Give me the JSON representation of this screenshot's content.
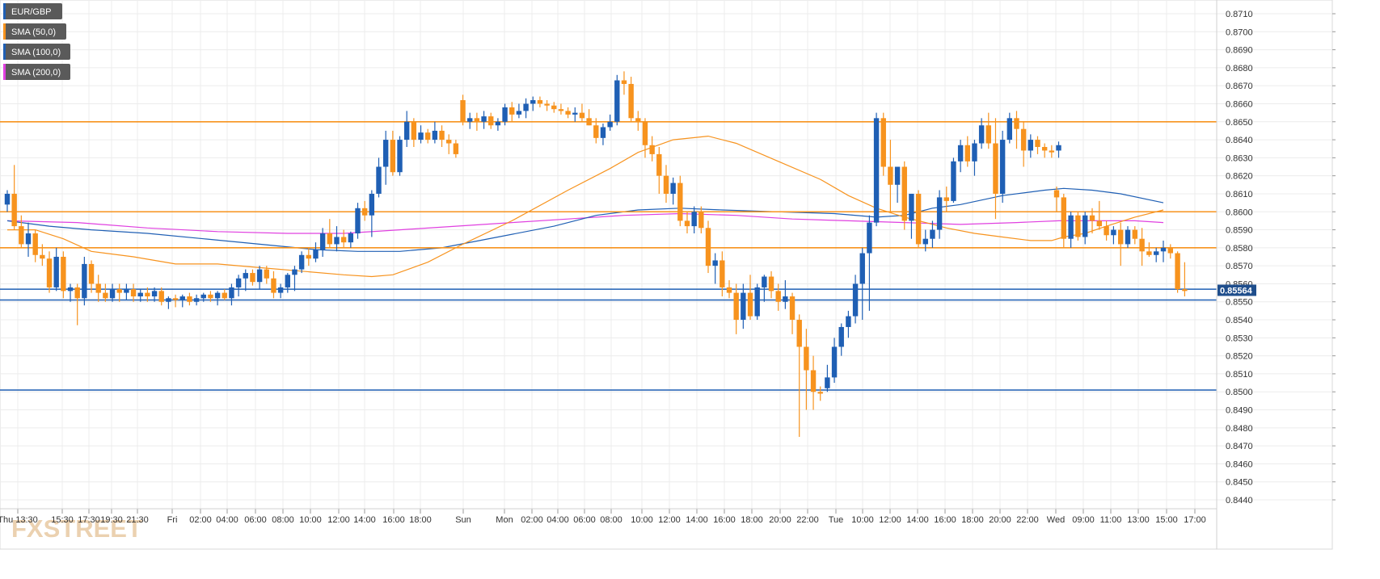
{
  "chart_data": {
    "type": "candlestick",
    "symbol": "EUR/GBP",
    "legend": [
      {
        "label": "EUR/GBP",
        "color": "#1f5fb4"
      },
      {
        "label": "SMA (50,0)",
        "color": "#f7931e"
      },
      {
        "label": "SMA (100,0)",
        "color": "#1f5fb4"
      },
      {
        "label": "SMA (200,0)",
        "color": "#e040e0"
      }
    ],
    "legend_placement": "top-left",
    "ylim": [
      0.8436,
      0.8716
    ],
    "y_ticks": [
      "0.8710",
      "0.8700",
      "0.8690",
      "0.8680",
      "0.8670",
      "0.8660",
      "0.8650",
      "0.8640",
      "0.8630",
      "0.8620",
      "0.8610",
      "0.8600",
      "0.8590",
      "0.8580",
      "0.8570",
      "0.8560",
      "0.8550",
      "0.8540",
      "0.8530",
      "0.8520",
      "0.8510",
      "0.8500",
      "0.8490",
      "0.8480",
      "0.8470",
      "0.8460",
      "0.8450",
      "0.8440"
    ],
    "x_ticks": [
      "Thu 13:30",
      "15:30",
      "17:30",
      "19:30",
      "21:30",
      "Fri",
      "02:00",
      "04:00",
      "06:00",
      "08:00",
      "10:00",
      "12:00",
      "14:00",
      "16:00",
      "18:00",
      "Sun",
      "Mon",
      "02:00",
      "04:00",
      "06:00",
      "08:00",
      "10:00",
      "12:00",
      "14:00",
      "16:00",
      "18:00",
      "20:00",
      "22:00",
      "Tue",
      "10:00",
      "12:00",
      "14:00",
      "16:00",
      "18:00",
      "20:00",
      "22:00",
      "Wed",
      "09:00",
      "11:00",
      "13:00",
      "15:00",
      "17:00"
    ],
    "grid": true,
    "last_price": "0.85564",
    "last_price_value": 0.85564,
    "horizontal_lines": [
      {
        "value": 0.865,
        "color": "#f7931e"
      },
      {
        "value": 0.86,
        "color": "#f7931e"
      },
      {
        "value": 0.858,
        "color": "#f7931e"
      },
      {
        "value": 0.8557,
        "color": "#1f5fb4"
      },
      {
        "value": 0.8551,
        "color": "#1f5fb4"
      },
      {
        "value": 0.8501,
        "color": "#1f5fb4"
      }
    ],
    "up_color": "#1f5fb4",
    "down_color": "#f7931e",
    "candles_ohlc": [
      [
        0.8604,
        0.8612,
        0.86,
        0.861
      ],
      [
        0.861,
        0.8626,
        0.859,
        0.8592
      ],
      [
        0.8592,
        0.8598,
        0.858,
        0.8582
      ],
      [
        0.8582,
        0.8594,
        0.8575,
        0.8588
      ],
      [
        0.8588,
        0.859,
        0.8572,
        0.8576
      ],
      [
        0.8576,
        0.8582,
        0.857,
        0.8574
      ],
      [
        0.8574,
        0.8578,
        0.8555,
        0.8558
      ],
      [
        0.8558,
        0.858,
        0.8556,
        0.8575
      ],
      [
        0.8575,
        0.8578,
        0.8552,
        0.8556
      ],
      [
        0.8556,
        0.856,
        0.855,
        0.8558
      ],
      [
        0.8558,
        0.856,
        0.8537,
        0.8552
      ],
      [
        0.8552,
        0.8575,
        0.8548,
        0.8571
      ],
      [
        0.8571,
        0.8573,
        0.8555,
        0.856
      ],
      [
        0.856,
        0.8565,
        0.855,
        0.8555
      ],
      [
        0.8555,
        0.856,
        0.855,
        0.8552
      ],
      [
        0.8552,
        0.856,
        0.855,
        0.8557
      ],
      [
        0.8557,
        0.856,
        0.855,
        0.8555
      ],
      [
        0.8555,
        0.856,
        0.8551,
        0.8557
      ],
      [
        0.8557,
        0.856,
        0.855,
        0.8553
      ],
      [
        0.8553,
        0.8557,
        0.855,
        0.8555
      ],
      [
        0.8555,
        0.8558,
        0.855,
        0.8553
      ],
      [
        0.8553,
        0.8558,
        0.855,
        0.8556
      ],
      [
        0.8556,
        0.8558,
        0.8548,
        0.855
      ],
      [
        0.855,
        0.8553,
        0.8546,
        0.8552
      ],
      [
        0.8552,
        0.8554,
        0.8547,
        0.8551
      ],
      [
        0.8551,
        0.8554,
        0.8547,
        0.8553
      ],
      [
        0.8553,
        0.8555,
        0.8548,
        0.855
      ],
      [
        0.855,
        0.8554,
        0.8548,
        0.8552
      ],
      [
        0.8552,
        0.8555,
        0.855,
        0.8554
      ],
      [
        0.8554,
        0.8556,
        0.855,
        0.8552
      ],
      [
        0.8552,
        0.8556,
        0.8548,
        0.8555
      ],
      [
        0.8555,
        0.8557,
        0.8551,
        0.8552
      ],
      [
        0.8552,
        0.856,
        0.8548,
        0.8558
      ],
      [
        0.8558,
        0.8565,
        0.8553,
        0.8563
      ],
      [
        0.8563,
        0.8568,
        0.8556,
        0.8566
      ],
      [
        0.8566,
        0.8568,
        0.8559,
        0.8561
      ],
      [
        0.8561,
        0.857,
        0.8557,
        0.8568
      ],
      [
        0.8568,
        0.857,
        0.856,
        0.8563
      ],
      [
        0.8563,
        0.8567,
        0.8552,
        0.8555
      ],
      [
        0.8555,
        0.856,
        0.8552,
        0.8558
      ],
      [
        0.8558,
        0.8566,
        0.8555,
        0.8565
      ],
      [
        0.8565,
        0.857,
        0.8556,
        0.8568
      ],
      [
        0.8568,
        0.8578,
        0.8566,
        0.8576
      ],
      [
        0.8576,
        0.858,
        0.857,
        0.8574
      ],
      [
        0.8574,
        0.8583,
        0.8572,
        0.8579
      ],
      [
        0.8579,
        0.8591,
        0.8575,
        0.8588
      ],
      [
        0.8588,
        0.8596,
        0.858,
        0.8582
      ],
      [
        0.8582,
        0.8592,
        0.8578,
        0.8586
      ],
      [
        0.8586,
        0.859,
        0.858,
        0.8583
      ],
      [
        0.8583,
        0.8589,
        0.858,
        0.8588
      ],
      [
        0.8588,
        0.8605,
        0.8585,
        0.8602
      ],
      [
        0.8602,
        0.8606,
        0.8595,
        0.8598
      ],
      [
        0.8598,
        0.8612,
        0.8586,
        0.861
      ],
      [
        0.861,
        0.863,
        0.8608,
        0.8625
      ],
      [
        0.8625,
        0.8645,
        0.8615,
        0.864
      ],
      [
        0.864,
        0.8645,
        0.862,
        0.8622
      ],
      [
        0.8622,
        0.8642,
        0.862,
        0.864
      ],
      [
        0.864,
        0.8656,
        0.8636,
        0.865
      ],
      [
        0.865,
        0.8652,
        0.8636,
        0.864
      ],
      [
        0.864,
        0.8648,
        0.8638,
        0.8644
      ],
      [
        0.8644,
        0.8646,
        0.8638,
        0.864
      ],
      [
        0.864,
        0.865,
        0.8638,
        0.8645
      ],
      [
        0.8645,
        0.8648,
        0.8636,
        0.864
      ],
      [
        0.864,
        0.8643,
        0.8632,
        0.8638
      ],
      [
        0.8638,
        0.864,
        0.863,
        0.8632
      ],
      [
        0.8662,
        0.8665,
        0.8648,
        0.865
      ],
      [
        0.865,
        0.8655,
        0.8646,
        0.8652
      ],
      [
        0.8652,
        0.8655,
        0.8645,
        0.865
      ],
      [
        0.865,
        0.8656,
        0.8646,
        0.8653
      ],
      [
        0.8653,
        0.8655,
        0.8646,
        0.8648
      ],
      [
        0.8648,
        0.8652,
        0.8645,
        0.865
      ],
      [
        0.865,
        0.866,
        0.8648,
        0.8658
      ],
      [
        0.8658,
        0.8661,
        0.865,
        0.8654
      ],
      [
        0.8654,
        0.866,
        0.8652,
        0.8656
      ],
      [
        0.8656,
        0.8663,
        0.8652,
        0.866
      ],
      [
        0.866,
        0.8664,
        0.8656,
        0.8662
      ],
      [
        0.8662,
        0.8664,
        0.8658,
        0.866
      ],
      [
        0.866,
        0.8662,
        0.8656,
        0.8659
      ],
      [
        0.8659,
        0.8661,
        0.8655,
        0.8657
      ],
      [
        0.8657,
        0.866,
        0.8654,
        0.8656
      ],
      [
        0.8656,
        0.8658,
        0.8652,
        0.8654
      ],
      [
        0.8654,
        0.8658,
        0.865,
        0.8655
      ],
      [
        0.8655,
        0.866,
        0.865,
        0.8652
      ],
      [
        0.8652,
        0.8657,
        0.8648,
        0.8648
      ],
      [
        0.8648,
        0.8652,
        0.8638,
        0.8641
      ],
      [
        0.8641,
        0.8649,
        0.8637,
        0.8647
      ],
      [
        0.8647,
        0.8654,
        0.8645,
        0.865
      ],
      [
        0.865,
        0.8676,
        0.8648,
        0.8673
      ],
      [
        0.8673,
        0.8678,
        0.8665,
        0.8671
      ],
      [
        0.8671,
        0.8675,
        0.865,
        0.8652
      ],
      [
        0.8652,
        0.8656,
        0.8645,
        0.865
      ],
      [
        0.865,
        0.8652,
        0.863,
        0.8637
      ],
      [
        0.8637,
        0.8642,
        0.8628,
        0.8632
      ],
      [
        0.8632,
        0.8636,
        0.861,
        0.862
      ],
      [
        0.862,
        0.8626,
        0.8605,
        0.861
      ],
      [
        0.861,
        0.8619,
        0.8604,
        0.8616
      ],
      [
        0.8616,
        0.862,
        0.8592,
        0.8595
      ],
      [
        0.8595,
        0.86,
        0.8588,
        0.8592
      ],
      [
        0.8592,
        0.8603,
        0.8588,
        0.86
      ],
      [
        0.86,
        0.8603,
        0.8588,
        0.8591
      ],
      [
        0.8591,
        0.8595,
        0.8566,
        0.857
      ],
      [
        0.857,
        0.8577,
        0.856,
        0.8573
      ],
      [
        0.8573,
        0.8578,
        0.8553,
        0.8558
      ],
      [
        0.8558,
        0.8562,
        0.8552,
        0.8555
      ],
      [
        0.8555,
        0.856,
        0.8532,
        0.854
      ],
      [
        0.854,
        0.856,
        0.8535,
        0.8555
      ],
      [
        0.8555,
        0.8565,
        0.854,
        0.8542
      ],
      [
        0.8542,
        0.856,
        0.854,
        0.8558
      ],
      [
        0.8558,
        0.8565,
        0.855,
        0.8564
      ],
      [
        0.8564,
        0.8567,
        0.8552,
        0.8556
      ],
      [
        0.8556,
        0.856,
        0.8545,
        0.855
      ],
      [
        0.855,
        0.8562,
        0.8546,
        0.8553
      ],
      [
        0.8553,
        0.8555,
        0.8532,
        0.854
      ],
      [
        0.854,
        0.8543,
        0.8475,
        0.8525
      ],
      [
        0.8525,
        0.8535,
        0.849,
        0.8512
      ],
      [
        0.8512,
        0.852,
        0.849,
        0.85
      ],
      [
        0.85,
        0.8503,
        0.8495,
        0.8499
      ],
      [
        0.8502,
        0.8515,
        0.85,
        0.8508
      ],
      [
        0.8508,
        0.853,
        0.8505,
        0.8525
      ],
      [
        0.8525,
        0.8538,
        0.852,
        0.8536
      ],
      [
        0.8536,
        0.8545,
        0.853,
        0.8542
      ],
      [
        0.8542,
        0.8565,
        0.8538,
        0.856
      ],
      [
        0.856,
        0.858,
        0.854,
        0.8577
      ],
      [
        0.8577,
        0.8598,
        0.8545,
        0.8594
      ],
      [
        0.8594,
        0.8655,
        0.8592,
        0.8652
      ],
      [
        0.8652,
        0.8655,
        0.862,
        0.8625
      ],
      [
        0.8625,
        0.864,
        0.86,
        0.8615
      ],
      [
        0.8615,
        0.8625,
        0.8605,
        0.8625
      ],
      [
        0.8625,
        0.8628,
        0.859,
        0.8595
      ],
      [
        0.8595,
        0.861,
        0.8585,
        0.861
      ],
      [
        0.861,
        0.8612,
        0.858,
        0.8582
      ],
      [
        0.8582,
        0.859,
        0.8578,
        0.8585
      ],
      [
        0.8585,
        0.8595,
        0.858,
        0.859
      ],
      [
        0.859,
        0.8612,
        0.8585,
        0.8608
      ],
      [
        0.8608,
        0.8614,
        0.86,
        0.8606
      ],
      [
        0.8606,
        0.863,
        0.8605,
        0.8628
      ],
      [
        0.8628,
        0.864,
        0.8622,
        0.8637
      ],
      [
        0.8637,
        0.8642,
        0.8625,
        0.8628
      ],
      [
        0.8628,
        0.864,
        0.862,
        0.8638
      ],
      [
        0.8638,
        0.8652,
        0.8635,
        0.8648
      ],
      [
        0.8648,
        0.8655,
        0.8635,
        0.8638
      ],
      [
        0.8638,
        0.8652,
        0.8596,
        0.861
      ],
      [
        0.861,
        0.8645,
        0.8605,
        0.864
      ],
      [
        0.864,
        0.8655,
        0.8638,
        0.8652
      ],
      [
        0.8652,
        0.8656,
        0.8635,
        0.8646
      ],
      [
        0.8646,
        0.865,
        0.8625,
        0.8634
      ],
      [
        0.8634,
        0.8643,
        0.863,
        0.864
      ],
      [
        0.864,
        0.8642,
        0.8632,
        0.8636
      ],
      [
        0.8636,
        0.8638,
        0.863,
        0.8634
      ],
      [
        0.8634,
        0.8637,
        0.863,
        0.8633
      ],
      [
        0.8634,
        0.8639,
        0.863,
        0.8637
      ],
      [
        0.8612,
        0.8614,
        0.86,
        0.8608
      ],
      [
        0.8608,
        0.861,
        0.858,
        0.8585
      ],
      [
        0.8585,
        0.86,
        0.858,
        0.8598
      ],
      [
        0.8598,
        0.86,
        0.8584,
        0.8586
      ],
      [
        0.8586,
        0.86,
        0.8582,
        0.8598
      ],
      [
        0.8598,
        0.8602,
        0.8588,
        0.8595
      ],
      [
        0.8595,
        0.8606,
        0.859,
        0.8592
      ],
      [
        0.8592,
        0.8595,
        0.8584,
        0.8587
      ],
      [
        0.8587,
        0.8592,
        0.8582,
        0.859
      ],
      [
        0.859,
        0.8594,
        0.857,
        0.8582
      ],
      [
        0.8582,
        0.8592,
        0.858,
        0.859
      ],
      [
        0.859,
        0.8592,
        0.8582,
        0.8585
      ],
      [
        0.8585,
        0.8591,
        0.857,
        0.8578
      ],
      [
        0.8578,
        0.8583,
        0.8575,
        0.8576
      ],
      [
        0.8576,
        0.858,
        0.8572,
        0.8578
      ],
      [
        0.8578,
        0.8584,
        0.8572,
        0.858
      ],
      [
        0.858,
        0.8582,
        0.8574,
        0.8577
      ],
      [
        0.8577,
        0.8578,
        0.8555,
        0.8557
      ],
      [
        0.8557,
        0.8572,
        0.8553,
        0.8556
      ]
    ],
    "sma_50": [
      [
        0,
        0.859
      ],
      [
        4,
        0.859
      ],
      [
        8,
        0.8585
      ],
      [
        12,
        0.8578
      ],
      [
        18,
        0.8575
      ],
      [
        24,
        0.8571
      ],
      [
        30,
        0.8571
      ],
      [
        36,
        0.8569
      ],
      [
        42,
        0.8567
      ],
      [
        48,
        0.8565
      ],
      [
        52,
        0.8564
      ],
      [
        55,
        0.8565
      ],
      [
        60,
        0.8572
      ],
      [
        65,
        0.8582
      ],
      [
        72,
        0.8595
      ],
      [
        80,
        0.8612
      ],
      [
        86,
        0.8624
      ],
      [
        90,
        0.8633
      ],
      [
        95,
        0.864
      ],
      [
        100,
        0.8642
      ],
      [
        104,
        0.8638
      ],
      [
        110,
        0.8628
      ],
      [
        116,
        0.8618
      ],
      [
        120,
        0.8609
      ],
      [
        124,
        0.8602
      ],
      [
        128,
        0.8597
      ],
      [
        131,
        0.8594
      ],
      [
        134,
        0.8591
      ],
      [
        138,
        0.8588
      ],
      [
        142,
        0.8586
      ],
      [
        146,
        0.8584
      ],
      [
        149,
        0.8584
      ],
      [
        152,
        0.8586
      ],
      [
        155,
        0.8588
      ],
      [
        158,
        0.8592
      ],
      [
        162,
        0.8597
      ],
      [
        166,
        0.8601
      ]
    ],
    "sma_100": [
      [
        0,
        0.8595
      ],
      [
        6,
        0.8592
      ],
      [
        12,
        0.859
      ],
      [
        20,
        0.8588
      ],
      [
        28,
        0.8585
      ],
      [
        36,
        0.8582
      ],
      [
        44,
        0.8579
      ],
      [
        50,
        0.8578
      ],
      [
        56,
        0.8578
      ],
      [
        62,
        0.858
      ],
      [
        70,
        0.8586
      ],
      [
        78,
        0.8592
      ],
      [
        84,
        0.8598
      ],
      [
        90,
        0.8601
      ],
      [
        96,
        0.8602
      ],
      [
        102,
        0.8601
      ],
      [
        110,
        0.86
      ],
      [
        118,
        0.8599
      ],
      [
        124,
        0.8597
      ],
      [
        128,
        0.8598
      ],
      [
        132,
        0.8602
      ],
      [
        136,
        0.8604
      ],
      [
        142,
        0.8609
      ],
      [
        148,
        0.8612
      ],
      [
        152,
        0.8613
      ],
      [
        156,
        0.8612
      ],
      [
        160,
        0.861
      ],
      [
        166,
        0.8605
      ]
    ],
    "sma_200": [
      [
        0,
        0.8595
      ],
      [
        10,
        0.8594
      ],
      [
        20,
        0.8591
      ],
      [
        30,
        0.8589
      ],
      [
        40,
        0.8588
      ],
      [
        48,
        0.8588
      ],
      [
        56,
        0.859
      ],
      [
        64,
        0.8592
      ],
      [
        72,
        0.8594
      ],
      [
        80,
        0.8596
      ],
      [
        88,
        0.8598
      ],
      [
        96,
        0.8599
      ],
      [
        104,
        0.8598
      ],
      [
        112,
        0.8596
      ],
      [
        120,
        0.8595
      ],
      [
        128,
        0.8594
      ],
      [
        136,
        0.8593
      ],
      [
        144,
        0.8594
      ],
      [
        150,
        0.8595
      ],
      [
        156,
        0.8595
      ],
      [
        162,
        0.8595
      ],
      [
        166,
        0.8594
      ]
    ]
  },
  "watermark": "FXSTREET"
}
